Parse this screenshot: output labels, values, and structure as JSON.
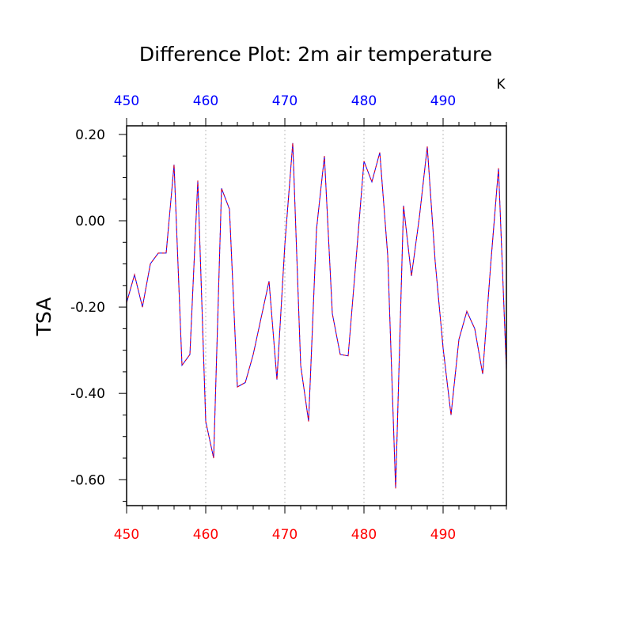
{
  "chart_data": {
    "type": "line",
    "title": "Difference Plot: 2m air temperature",
    "ylabel": "TSA",
    "units_label": "K",
    "xlim": [
      450,
      498
    ],
    "ylim": [
      -0.66,
      0.22
    ],
    "x_ticks": [
      450,
      460,
      470,
      480,
      490
    ],
    "x_tick_labels": [
      "450",
      "460",
      "470",
      "480",
      "490"
    ],
    "y_ticks": [
      0.2,
      0.0,
      -0.2,
      -0.4,
      -0.6
    ],
    "y_tick_labels": [
      "0.20",
      "0.00",
      "-0.20",
      "-0.40",
      "-0.60"
    ],
    "grid": "vertical dotted at major x ticks",
    "colors": {
      "bottom_ticks": "#ff0000",
      "top_ticks": "#0000ff",
      "line_primary": "#0000ff",
      "line_dash": "#ff0000",
      "grid": "#bbbbbb"
    },
    "x": [
      450,
      451,
      452,
      453,
      454,
      455,
      456,
      457,
      458,
      459,
      460,
      461,
      462,
      463,
      464,
      465,
      466,
      467,
      468,
      469,
      470,
      471,
      472,
      473,
      474,
      475,
      476,
      477,
      478,
      479,
      480,
      481,
      482,
      483,
      484,
      485,
      486,
      487,
      488,
      489,
      490,
      491,
      492,
      493,
      494,
      495,
      496,
      497,
      498
    ],
    "series": [
      {
        "values": [
          -0.19,
          -0.125,
          -0.2,
          -0.1,
          -0.075,
          -0.075,
          0.13,
          -0.335,
          -0.31,
          0.093,
          -0.465,
          -0.55,
          0.075,
          0.027,
          -0.385,
          -0.375,
          -0.31,
          -0.225,
          -0.14,
          -0.368,
          -0.055,
          0.18,
          -0.335,
          -0.465,
          -0.02,
          0.15,
          -0.215,
          -0.31,
          -0.313,
          -0.09,
          0.138,
          0.09,
          0.158,
          -0.08,
          -0.62,
          0.035,
          -0.128,
          0.008,
          0.172,
          -0.095,
          -0.295,
          -0.45,
          -0.275,
          -0.21,
          -0.25,
          -0.355,
          -0.105,
          0.122,
          -0.345
        ]
      }
    ]
  }
}
